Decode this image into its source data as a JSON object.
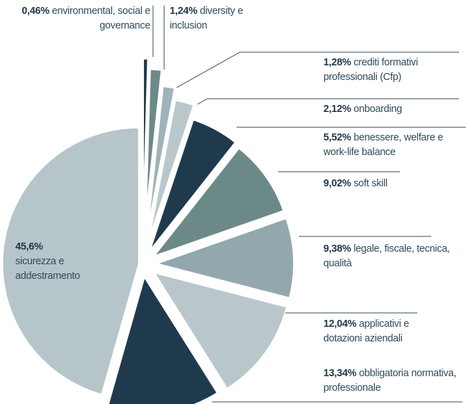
{
  "chart_data": {
    "type": "pie",
    "categories": [
      "environmental, social e governance",
      "diversity e inclusion",
      "crediti formativi professionali (Cfp)",
      "onboarding",
      "benessere, welfare e work-life balance",
      "soft skill",
      "legale, fiscale, tecnica, qualità",
      "applicativi e dotazioni aziendali",
      "obbligatoria normativa, professionale",
      "sicurezza e addestramento"
    ],
    "values": [
      0.46,
      1.24,
      1.28,
      2.12,
      5.52,
      9.02,
      9.38,
      12.04,
      13.34,
      45.6
    ],
    "value_labels": [
      "0,46%",
      "1,24%",
      "1,28%",
      "2,12%",
      "5,52%",
      "9,02%",
      "9,38%",
      "12,04%",
      "13,34%",
      "45,6%"
    ],
    "colors": [
      "#1f3a4d",
      "#6b8a87",
      "#9fb3b8",
      "#b9c7cb",
      "#1f3a4d",
      "#6b8a87",
      "#93a8ae",
      "#b9c7cb",
      "#1f3a4d",
      "#b6c5c9"
    ]
  }
}
